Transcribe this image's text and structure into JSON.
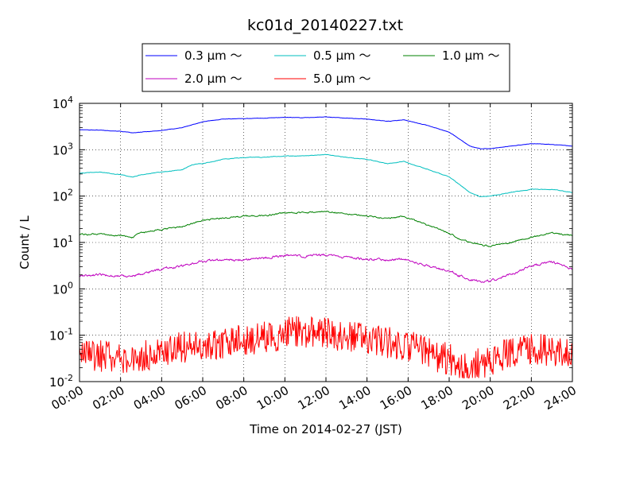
{
  "chart_data": {
    "type": "line",
    "title": "kc01d_20140227.txt",
    "xlabel": "Time on 2014-02-27 (JST)",
    "ylabel": "Count / L",
    "xlim": [
      0,
      24
    ],
    "ylim": [
      0.01,
      10000
    ],
    "yscale": "log",
    "grid": true,
    "legend_position": "top-center",
    "x_ticks": [
      "00:00",
      "02:00",
      "04:00",
      "06:00",
      "08:00",
      "10:00",
      "12:00",
      "14:00",
      "16:00",
      "18:00",
      "20:00",
      "22:00",
      "24:00"
    ],
    "y_ticks": [
      {
        "value": 0.01,
        "base": "10",
        "exp": "-2"
      },
      {
        "value": 0.1,
        "base": "10",
        "exp": "-1"
      },
      {
        "value": 1,
        "base": "10",
        "exp": "0"
      },
      {
        "value": 10,
        "base": "10",
        "exp": "1"
      },
      {
        "value": 100,
        "base": "10",
        "exp": "2"
      },
      {
        "value": 1000,
        "base": "10",
        "exp": "3"
      },
      {
        "value": 10000,
        "base": "10",
        "exp": "4"
      }
    ],
    "series": [
      {
        "name": "0.3 μm ～",
        "color": "#0000ff",
        "noise": 0.008,
        "x": [
          0,
          1,
          2,
          2.6,
          3,
          4,
          5,
          6,
          7,
          8,
          9,
          10,
          11,
          12,
          13,
          14,
          15,
          15.8,
          16.3,
          17,
          18,
          18.5,
          19,
          19.5,
          20,
          21,
          22,
          23,
          24
        ],
        "y": [
          2700,
          2650,
          2500,
          2300,
          2400,
          2600,
          3000,
          4000,
          4600,
          4700,
          4800,
          5000,
          4900,
          5100,
          4800,
          4600,
          4100,
          4400,
          3900,
          3300,
          2400,
          1700,
          1200,
          1050,
          1050,
          1200,
          1350,
          1300,
          1200
        ]
      },
      {
        "name": "0.5 μm ～",
        "color": "#00bfbf",
        "noise": 0.012,
        "x": [
          0,
          1,
          2,
          2.6,
          3,
          4,
          5,
          5.5,
          6,
          7,
          8,
          9,
          10,
          11,
          12,
          13,
          14,
          15,
          15.8,
          16.3,
          17,
          18,
          18.5,
          19,
          19.5,
          20,
          21,
          22,
          23,
          24
        ],
        "y": [
          310,
          330,
          290,
          260,
          290,
          330,
          370,
          480,
          500,
          620,
          680,
          690,
          730,
          740,
          790,
          680,
          620,
          500,
          560,
          470,
          370,
          260,
          180,
          120,
          97,
          100,
          120,
          140,
          140,
          120
        ]
      },
      {
        "name": "1.0 μm ～",
        "color": "#008000",
        "noise": 0.03,
        "x": [
          0,
          1,
          2,
          2.6,
          3,
          4,
          5,
          6,
          7,
          8,
          9,
          10,
          11,
          12,
          13,
          14,
          15,
          15.8,
          16.3,
          17,
          18,
          18.5,
          19,
          19.5,
          20,
          21,
          22,
          23,
          24
        ],
        "y": [
          15,
          15,
          14,
          13,
          16,
          19,
          22,
          30,
          34,
          37,
          38,
          43,
          44,
          47,
          42,
          37,
          33,
          37,
          30,
          23,
          16,
          12,
          10,
          9,
          8.3,
          10,
          13,
          16,
          14
        ]
      },
      {
        "name": "2.0 μm ～",
        "color": "#bf00bf",
        "noise": 0.05,
        "x": [
          0,
          1,
          2,
          2.6,
          3,
          4,
          5,
          6,
          7,
          8,
          9,
          10,
          11,
          12,
          13,
          14,
          15,
          15.8,
          16.3,
          17,
          18,
          18.5,
          19,
          19.5,
          20,
          21,
          22,
          23,
          24
        ],
        "y": [
          1.9,
          2.0,
          1.9,
          1.9,
          2.1,
          2.7,
          3.1,
          4.0,
          4.2,
          4.3,
          4.6,
          5.2,
          5.1,
          5.4,
          4.7,
          4.4,
          4.2,
          4.5,
          3.8,
          3.1,
          2.5,
          1.9,
          1.6,
          1.4,
          1.5,
          2.0,
          3.1,
          3.8,
          2.7
        ]
      },
      {
        "name": "5.0 μm ～",
        "color": "#ff0000",
        "noise": 0.35,
        "floor": 0.012,
        "noise_seed": 7,
        "x": [
          0,
          1,
          2,
          3,
          4,
          5,
          6,
          7,
          8,
          9,
          10,
          11,
          12,
          13,
          14,
          15,
          16,
          17,
          18,
          19,
          20,
          21,
          22,
          23,
          24
        ],
        "y": [
          0.035,
          0.035,
          0.03,
          0.035,
          0.045,
          0.055,
          0.06,
          0.07,
          0.08,
          0.09,
          0.11,
          0.12,
          0.11,
          0.09,
          0.08,
          0.07,
          0.06,
          0.04,
          0.03,
          0.02,
          0.03,
          0.04,
          0.05,
          0.045,
          0.035
        ]
      }
    ]
  }
}
